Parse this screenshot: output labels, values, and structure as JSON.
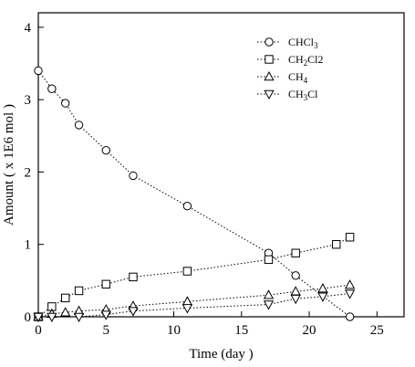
{
  "chart_data": {
    "type": "line",
    "title": "",
    "xlabel": "Time (day )",
    "ylabel": "Amount ( x 1E6 mol )",
    "xlim": [
      0,
      27
    ],
    "ylim": [
      0,
      4.2
    ],
    "xticks": [
      0,
      5,
      10,
      15,
      20,
      25
    ],
    "yticks": [
      0,
      1,
      2,
      3,
      4
    ],
    "grid": false,
    "legend_position": "top-right",
    "series": [
      {
        "name": "CHCl3",
        "label_main": "CHCl",
        "label_sub": "3",
        "label_tail": "",
        "marker": "circle",
        "x": [
          0,
          1,
          2,
          3,
          5,
          7,
          11,
          17,
          19,
          23
        ],
        "y": [
          3.4,
          3.15,
          2.95,
          2.65,
          2.3,
          1.95,
          1.53,
          0.88,
          0.57,
          0.0
        ]
      },
      {
        "name": "CH2Cl2",
        "label_main": "CH",
        "label_sub": "2",
        "label_tail": "Cl2",
        "marker": "square",
        "x": [
          0,
          1,
          2,
          3,
          5,
          7,
          11,
          17,
          19,
          22,
          23
        ],
        "y": [
          0.0,
          0.14,
          0.26,
          0.36,
          0.45,
          0.55,
          0.63,
          0.79,
          0.88,
          1.0,
          1.1
        ]
      },
      {
        "name": "CH4",
        "label_main": "CH",
        "label_sub": "4",
        "label_tail": "",
        "marker": "triangle-up",
        "x": [
          0,
          1,
          2,
          3,
          5,
          7,
          11,
          17,
          19,
          21,
          23
        ],
        "y": [
          0.0,
          0.04,
          0.06,
          0.08,
          0.1,
          0.15,
          0.21,
          0.3,
          0.35,
          0.39,
          0.44
        ]
      },
      {
        "name": "CH3Cl",
        "label_main": "CH",
        "label_sub": "3",
        "label_tail": "Cl",
        "marker": "triangle-down",
        "x": [
          0,
          1,
          3,
          5,
          7,
          11,
          17,
          19,
          21,
          23
        ],
        "y": [
          0.0,
          0.0,
          0.0,
          0.03,
          0.08,
          0.12,
          0.17,
          0.25,
          0.28,
          0.32
        ]
      }
    ]
  }
}
